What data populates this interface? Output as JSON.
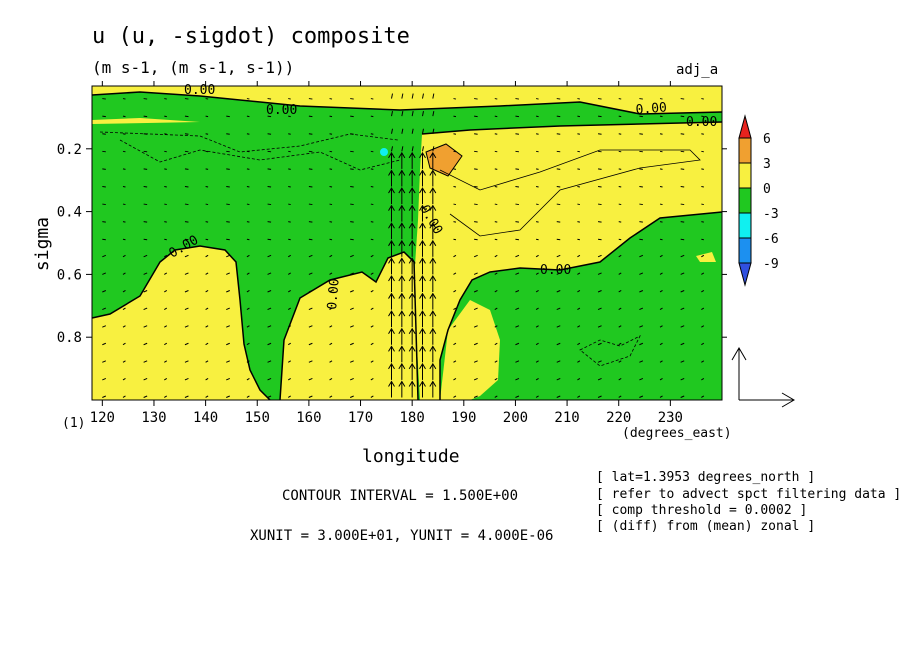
{
  "chart_data": {
    "type": "heatmap",
    "title": "u (u, -sigdot) composite",
    "subtitle": "(m s-1, (m s-1, s-1))",
    "tag": "adj_a",
    "xlabel": "longitude",
    "x_unit_label": "(degrees_east)",
    "ylabel": "sigma",
    "panel_index": "(1)",
    "xlim": [
      118,
      240
    ],
    "ylim": [
      0.0,
      1.0
    ],
    "y_inverted": true,
    "x_ticks": [
      "120",
      "130",
      "140",
      "150",
      "160",
      "170",
      "180",
      "190",
      "200",
      "210",
      "220",
      "230"
    ],
    "x_tick_values": [
      120,
      130,
      140,
      150,
      160,
      170,
      180,
      190,
      200,
      210,
      220,
      230
    ],
    "y_ticks": [
      "0.2",
      "0.4",
      "0.6",
      "0.8"
    ],
    "y_tick_values": [
      0.2,
      0.4,
      0.6,
      0.8
    ],
    "colorbar": {
      "labels": [
        "6",
        "3",
        "0",
        "-3",
        "-6",
        "-9"
      ],
      "levels": [
        6,
        3,
        0,
        -3,
        -6,
        -9
      ],
      "colors": [
        "#e8231e",
        "#f0a030",
        "#f8f040",
        "#20c820",
        "#10f0f0",
        "#1c90f0",
        "#3050e0"
      ]
    },
    "contour_labels": [
      "0.00",
      "0.00",
      "0.00",
      "0.00",
      "0.00",
      "0.00",
      "0.00",
      "0.00"
    ],
    "contour_interval": "CONTOUR INTERVAL = 1.500E+00",
    "vector_units": "XUNIT = 3.000E+01, YUNIT = 4.000E-06",
    "info": [
      "[ lat=1.3953 degrees_north ]",
      "[ refer to advect spct filtering data ]",
      "[ comp threshold = 0.0002 ]",
      "[ (diff) from (mean) zonal ]"
    ],
    "vector_field": {
      "x": [
        120,
        124,
        128,
        132,
        136,
        140,
        144,
        148,
        152,
        156,
        160,
        164,
        168,
        172,
        176,
        178,
        180,
        182,
        184,
        188,
        192,
        196,
        200,
        204,
        208,
        212,
        216,
        220,
        224,
        228,
        232,
        236
      ],
      "note_arrows_strong_at": [
        176,
        178,
        180,
        182,
        184
      ]
    }
  }
}
